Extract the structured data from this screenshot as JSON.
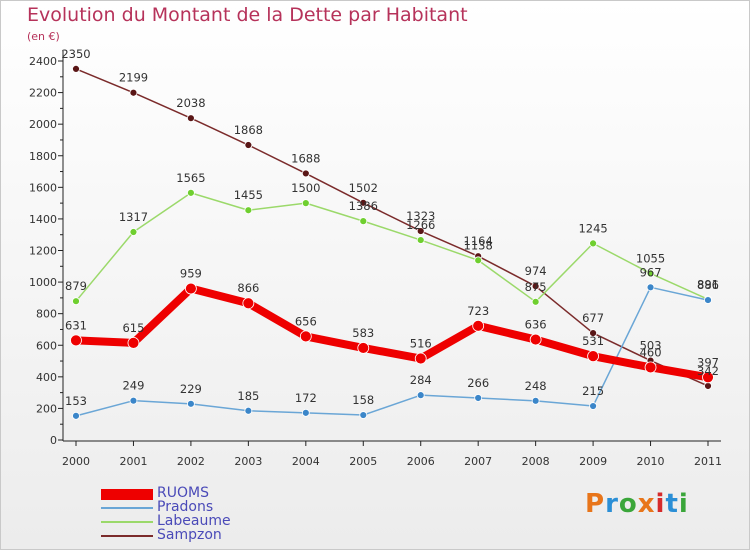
{
  "header": {
    "title": "Evolution du Montant de la Dette par Habitant",
    "unit": "(en €)"
  },
  "logo": {
    "text": "Proxiti",
    "colors": [
      "#e8751a",
      "#2b8fd6",
      "#3aa63a",
      "#e8751a",
      "#d62b2b",
      "#2b8fd6",
      "#3aa63a"
    ]
  },
  "chart_data": {
    "type": "line",
    "title": "Evolution du Montant de la Dette par Habitant",
    "ylabel": "(en €)",
    "xlabel": "",
    "x": [
      "2000",
      "2001",
      "2002",
      "2003",
      "2004",
      "2005",
      "2006",
      "2007",
      "2008",
      "2009",
      "2010",
      "2011"
    ],
    "ylim": [
      0,
      2400
    ],
    "yticks": [
      0,
      200,
      400,
      600,
      800,
      1000,
      1200,
      1400,
      1600,
      1800,
      2000,
      2200,
      2400
    ],
    "grid": false,
    "legend_position": "bottom-left",
    "series": [
      {
        "name": "Sampzon",
        "color": "#7b2b2b",
        "point_color": "#5a1616",
        "width": 1.5,
        "point_size": 3.5,
        "values": [
          2350,
          2199,
          2038,
          1868,
          1688,
          1502,
          1323,
          1164,
          974,
          677,
          503,
          342
        ],
        "labels": [
          "2350",
          "2199",
          "2038",
          "1868",
          "1688",
          "1502",
          "1323",
          "1164",
          "974",
          "677",
          "503",
          "342"
        ]
      },
      {
        "name": "Labeaume",
        "color": "#9bd96a",
        "point_color": "#6fcf2f",
        "width": 1.5,
        "point_size": 3.5,
        "values": [
          879,
          1317,
          1565,
          1455,
          1500,
          1386,
          1266,
          1138,
          875,
          1245,
          1055,
          891
        ],
        "labels": [
          "879",
          "1317",
          "1565",
          "1455",
          "1500",
          "1386",
          "1266",
          "1138",
          "875",
          "1245",
          "1055",
          "891"
        ]
      },
      {
        "name": "Pradons",
        "color": "#6aa6d6",
        "point_color": "#3b86c9",
        "width": 1.5,
        "point_size": 3.5,
        "values": [
          153,
          249,
          229,
          185,
          172,
          158,
          284,
          266,
          248,
          215,
          967,
          886
        ],
        "labels": [
          "153",
          "249",
          "229",
          "185",
          "172",
          "158",
          "284",
          "266",
          "248",
          "215",
          "967",
          "886"
        ]
      },
      {
        "name": "RUOMS",
        "color": "#ee0000",
        "point_color": "#ee0000",
        "width": 8,
        "point_size": 5.5,
        "values": [
          631,
          615,
          959,
          866,
          656,
          583,
          516,
          723,
          636,
          531,
          460,
          397
        ],
        "labels": [
          "631",
          "615",
          "959",
          "866",
          "656",
          "583",
          "516",
          "723",
          "636",
          "531",
          "460",
          "397"
        ]
      }
    ]
  }
}
